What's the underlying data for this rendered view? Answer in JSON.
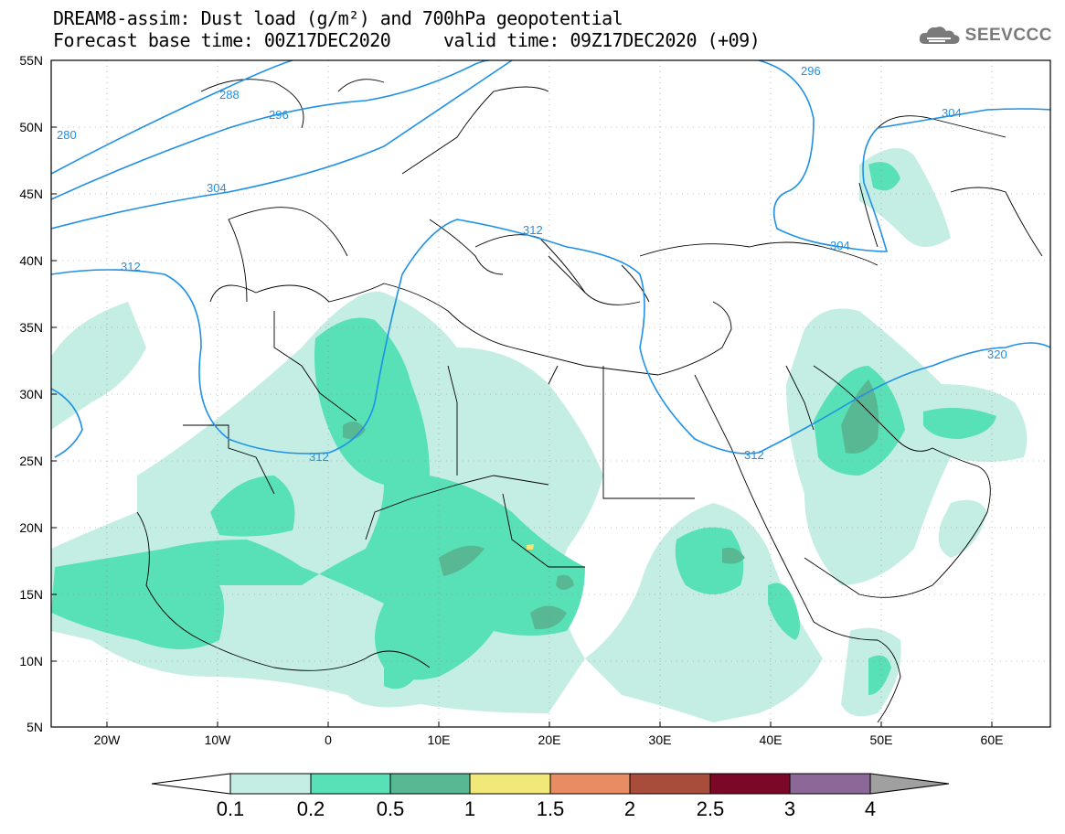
{
  "header": {
    "title_line1": "DREAM8-assim: Dust load (g/m²) and 700hPa geopotential",
    "title_line2": "Forecast base time: 00Z17DEC2020     valid time: 09Z17DEC2020 (+09)"
  },
  "logo": {
    "text": "SEEVCCC",
    "icon": "cloud-logo-icon"
  },
  "map": {
    "lat_labels": [
      "55N",
      "50N",
      "45N",
      "40N",
      "35N",
      "30N",
      "25N",
      "20N",
      "15N",
      "10N",
      "5N"
    ],
    "lon_labels": [
      "20W",
      "10W",
      "0",
      "10E",
      "20E",
      "30E",
      "40E",
      "50E",
      "60E"
    ],
    "contour_labels": [
      "280",
      "288",
      "296",
      "304",
      "312",
      "296",
      "304",
      "304",
      "312",
      "312",
      "312",
      "320"
    ]
  },
  "legend": {
    "labels": [
      "0.1",
      "0.2",
      "0.5",
      "1",
      "1.5",
      "2",
      "2.5",
      "3",
      "4"
    ],
    "colors": [
      "#c4eee4",
      "#58e0b6",
      "#58b893",
      "#f0e878",
      "#e88c64",
      "#a84c3c",
      "#7c0828",
      "#8c6898",
      "#a0a0a0"
    ]
  },
  "colors": {
    "contour": "#1e90e8",
    "border": "#000000"
  }
}
